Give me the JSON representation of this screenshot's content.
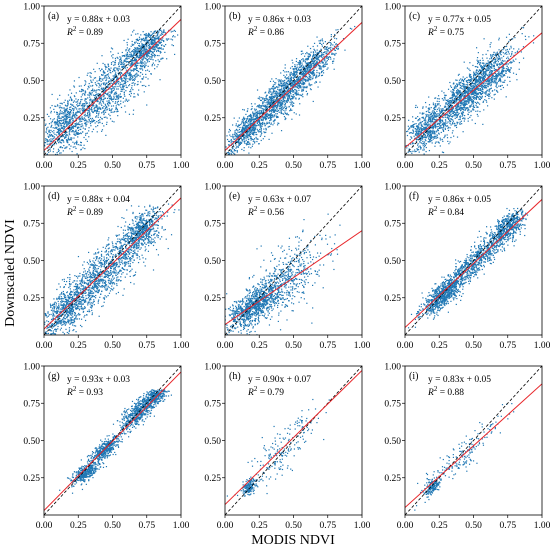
{
  "figure": {
    "xlabel": "MODIS NDVI",
    "ylabel": "Downscaled NDVI"
  },
  "colors": {
    "scatter": "#1f77b4",
    "fit_line": "#e8262a",
    "identity_line": "#000000"
  },
  "chart_data": [
    {
      "type": "scatter",
      "panel": "(a)",
      "equation": "y = 0.88x + 0.03",
      "r2_label": "R",
      "r2_exp": "2",
      "r2_value": " = 0.89",
      "slope": 0.88,
      "intercept": 0.03,
      "xlim": [
        0,
        1
      ],
      "ylim": [
        0,
        1
      ],
      "xticks": [
        "0.00",
        "0.25",
        "0.50",
        "0.75",
        "1.00"
      ],
      "yticks": [
        "0.25",
        "0.50",
        "0.75",
        "1.00"
      ],
      "diagonal": true,
      "clusters": [
        {
          "cx": 0.45,
          "cy": 0.42,
          "sx": 0.22,
          "sy": 0.2,
          "n": 1400,
          "rho": 0.85
        },
        {
          "cx": 0.75,
          "cy": 0.72,
          "sx": 0.07,
          "sy": 0.07,
          "n": 500,
          "rho": 0.6
        },
        {
          "cx": 0.15,
          "cy": 0.2,
          "sx": 0.08,
          "sy": 0.1,
          "n": 400,
          "rho": 0.4
        }
      ],
      "ycap": 0.84
    },
    {
      "type": "scatter",
      "panel": "(b)",
      "equation": "y = 0.86x + 0.03",
      "r2_label": "R",
      "r2_exp": "2",
      "r2_value": " = 0.86",
      "slope": 0.86,
      "intercept": 0.03,
      "xlim": [
        0,
        1
      ],
      "ylim": [
        0,
        1
      ],
      "xticks": [
        "0.00",
        "0.25",
        "0.50",
        "0.75",
        "1.00"
      ],
      "yticks": [
        "0.25",
        "0.50",
        "0.75",
        "1.00"
      ],
      "diagonal": true,
      "clusters": [
        {
          "cx": 0.38,
          "cy": 0.36,
          "sx": 0.16,
          "sy": 0.15,
          "n": 1300,
          "rho": 0.9
        },
        {
          "cx": 0.62,
          "cy": 0.58,
          "sx": 0.1,
          "sy": 0.1,
          "n": 500,
          "rho": 0.8
        },
        {
          "cx": 0.15,
          "cy": 0.16,
          "sx": 0.06,
          "sy": 0.06,
          "n": 350,
          "rho": 0.6
        }
      ],
      "ycap": 0.92
    },
    {
      "type": "scatter",
      "panel": "(c)",
      "equation": "y = 0.77x + 0.05",
      "r2_label": "R",
      "r2_exp": "2",
      "r2_value": " = 0.75",
      "slope": 0.77,
      "intercept": 0.05,
      "xlim": [
        0,
        1
      ],
      "ylim": [
        0,
        1
      ],
      "xticks": [
        "0.00",
        "0.25",
        "0.50",
        "0.75",
        "1.00"
      ],
      "yticks": [
        "0.25",
        "0.50",
        "0.75",
        "1.00"
      ],
      "diagonal": true,
      "clusters": [
        {
          "cx": 0.4,
          "cy": 0.36,
          "sx": 0.17,
          "sy": 0.15,
          "n": 1400,
          "rho": 0.84
        },
        {
          "cx": 0.62,
          "cy": 0.54,
          "sx": 0.1,
          "sy": 0.1,
          "n": 450,
          "rho": 0.7
        },
        {
          "cx": 0.15,
          "cy": 0.17,
          "sx": 0.06,
          "sy": 0.07,
          "n": 300,
          "rho": 0.5
        }
      ],
      "ycap": 0.95
    },
    {
      "type": "scatter",
      "panel": "(d)",
      "equation": "y = 0.88x + 0.04",
      "r2_label": "R",
      "r2_exp": "2",
      "r2_value": " = 0.89",
      "slope": 0.88,
      "intercept": 0.04,
      "xlim": [
        0,
        1
      ],
      "ylim": [
        0,
        1
      ],
      "xticks": [
        "0.00",
        "0.25",
        "0.50",
        "0.75",
        "1.00"
      ],
      "yticks": [
        "0.25",
        "0.50",
        "0.75",
        "1.00"
      ],
      "diagonal": true,
      "clusters": [
        {
          "cx": 0.42,
          "cy": 0.4,
          "sx": 0.2,
          "sy": 0.19,
          "n": 1400,
          "rho": 0.88
        },
        {
          "cx": 0.72,
          "cy": 0.7,
          "sx": 0.07,
          "sy": 0.07,
          "n": 450,
          "rho": 0.6
        },
        {
          "cx": 0.15,
          "cy": 0.17,
          "sx": 0.07,
          "sy": 0.07,
          "n": 350,
          "rho": 0.5
        }
      ],
      "ycap": 0.88
    },
    {
      "type": "scatter",
      "panel": "(e)",
      "equation": "y = 0.63x + 0.07",
      "r2_label": "R",
      "r2_exp": "2",
      "r2_value": " = 0.56",
      "slope": 0.63,
      "intercept": 0.07,
      "xlim": [
        0,
        1
      ],
      "ylim": [
        0,
        1
      ],
      "xticks": [
        "0.00",
        "0.25",
        "0.50",
        "0.75",
        "1.00"
      ],
      "yticks": [
        "0.25",
        "0.50",
        "0.75",
        "1.00"
      ],
      "diagonal": true,
      "clusters": [
        {
          "cx": 0.22,
          "cy": 0.2,
          "sx": 0.1,
          "sy": 0.08,
          "n": 900,
          "rho": 0.7
        },
        {
          "cx": 0.45,
          "cy": 0.38,
          "sx": 0.14,
          "sy": 0.14,
          "n": 500,
          "rho": 0.6
        }
      ],
      "ycap": 0.85
    },
    {
      "type": "scatter",
      "panel": "(f)",
      "equation": "y = 0.86x + 0.05",
      "r2_label": "R",
      "r2_exp": "2",
      "r2_value": " = 0.84",
      "slope": 0.86,
      "intercept": 0.05,
      "xlim": [
        0,
        1
      ],
      "ylim": [
        0,
        1
      ],
      "xticks": [
        "0.00",
        "0.25",
        "0.50",
        "0.75",
        "1.00"
      ],
      "yticks": [
        "0.25",
        "0.50",
        "0.75",
        "1.00"
      ],
      "diagonal": true,
      "clusters": [
        {
          "cx": 0.28,
          "cy": 0.27,
          "sx": 0.08,
          "sy": 0.07,
          "n": 700,
          "rho": 0.8
        },
        {
          "cx": 0.52,
          "cy": 0.5,
          "sx": 0.12,
          "sy": 0.11,
          "n": 700,
          "rho": 0.9
        },
        {
          "cx": 0.75,
          "cy": 0.72,
          "sx": 0.06,
          "sy": 0.06,
          "n": 500,
          "rho": 0.6
        }
      ],
      "ycap": 0.85
    },
    {
      "type": "scatter",
      "panel": "(g)",
      "equation": "y = 0.93x + 0.03",
      "r2_label": "R",
      "r2_exp": "2",
      "r2_value": " = 0.93",
      "slope": 0.93,
      "intercept": 0.03,
      "xlim": [
        0,
        1
      ],
      "ylim": [
        0,
        1
      ],
      "xticks": [
        "0.00",
        "0.25",
        "0.50",
        "0.75",
        "1.00"
      ],
      "yticks": [
        "0.25",
        "0.50",
        "0.75",
        "1.00"
      ],
      "diagonal": true,
      "clusters": [
        {
          "cx": 0.3,
          "cy": 0.28,
          "sx": 0.05,
          "sy": 0.04,
          "n": 400,
          "rho": 0.7
        },
        {
          "cx": 0.45,
          "cy": 0.44,
          "sx": 0.05,
          "sy": 0.04,
          "n": 400,
          "rho": 0.7
        },
        {
          "cx": 0.7,
          "cy": 0.7,
          "sx": 0.08,
          "sy": 0.08,
          "n": 600,
          "rho": 0.85
        },
        {
          "cx": 0.82,
          "cy": 0.8,
          "sx": 0.04,
          "sy": 0.03,
          "n": 250,
          "rho": 0.5
        }
      ],
      "ycap": 0.84
    },
    {
      "type": "scatter",
      "panel": "(h)",
      "equation": "y = 0.90x + 0.07",
      "r2_label": "R",
      "r2_exp": "2",
      "r2_value": " = 0.79",
      "slope": 0.9,
      "intercept": 0.07,
      "xlim": [
        0,
        1
      ],
      "ylim": [
        0,
        1
      ],
      "xticks": [
        "0.00",
        "0.25",
        "0.50",
        "0.75",
        "1.00"
      ],
      "yticks": [
        "0.25",
        "0.50",
        "0.75",
        "1.00"
      ],
      "diagonal": true,
      "clusters": [
        {
          "cx": 0.18,
          "cy": 0.19,
          "sx": 0.03,
          "sy": 0.03,
          "n": 150,
          "rho": 0.6
        },
        {
          "cx": 0.4,
          "cy": 0.42,
          "sx": 0.13,
          "sy": 0.13,
          "n": 200,
          "rho": 0.85
        }
      ],
      "ycap": 0.8
    },
    {
      "type": "scatter",
      "panel": "(i)",
      "equation": "y = 0.83x + 0.05",
      "r2_label": "R",
      "r2_exp": "2",
      "r2_value": " = 0.88",
      "slope": 0.83,
      "intercept": 0.05,
      "xlim": [
        0,
        1
      ],
      "ylim": [
        0,
        1
      ],
      "xticks": [
        "0.00",
        "0.25",
        "0.50",
        "0.75",
        "1.00"
      ],
      "yticks": [
        "0.25",
        "0.50",
        "0.75",
        "1.00"
      ],
      "diagonal": true,
      "clusters": [
        {
          "cx": 0.2,
          "cy": 0.19,
          "sx": 0.03,
          "sy": 0.03,
          "n": 160,
          "rho": 0.6
        },
        {
          "cx": 0.42,
          "cy": 0.4,
          "sx": 0.13,
          "sy": 0.12,
          "n": 180,
          "rho": 0.9
        }
      ],
      "ycap": 0.75
    }
  ]
}
